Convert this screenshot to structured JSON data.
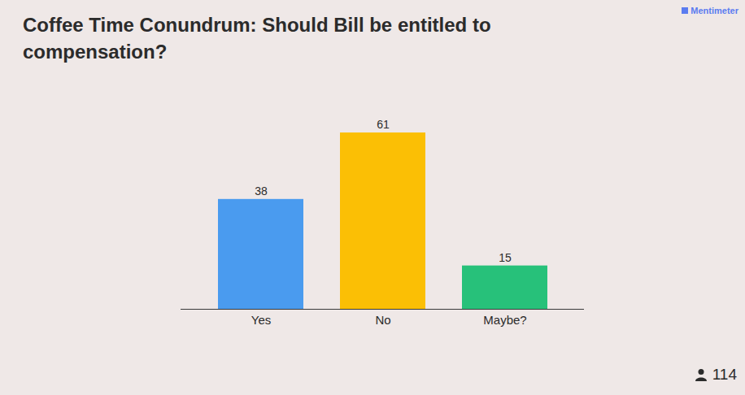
{
  "chart_data": {
    "type": "bar",
    "title": "Coffee Time Conundrum: Should Bill be entitled to compensation?",
    "categories": [
      "Yes",
      "No",
      "Maybe?"
    ],
    "values": [
      38,
      61,
      15
    ],
    "colors": [
      "#4a9bef",
      "#fbbf05",
      "#27c17a"
    ],
    "data_labels": true,
    "tick_labels": "x",
    "grid": false,
    "annotations": [
      "Mentimeter"
    ],
    "responses": 114
  }
}
